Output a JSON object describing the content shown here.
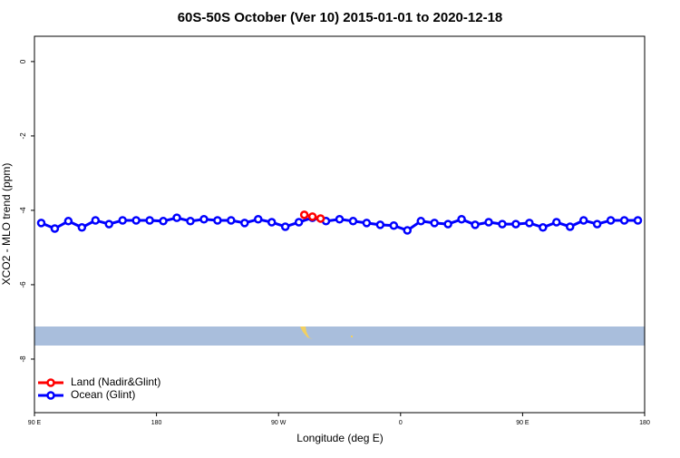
{
  "chart_data": {
    "type": "line",
    "title": "60S-50S October (Ver 10)   2015-01-01 to 2020-12-18",
    "x_label": "Longitude (deg E)",
    "y_label": "XCO2 - MLO trend (ppm)",
    "xlim": [
      90,
      540
    ],
    "ylim": [
      -9.44,
      0.68
    ],
    "xticks": [
      {
        "value": 90,
        "label": "90 E"
      },
      {
        "value": 180,
        "label": "180"
      },
      {
        "value": 270,
        "label": "90 W"
      },
      {
        "value": 360,
        "label": "0"
      },
      {
        "value": 450,
        "label": "90 E"
      },
      {
        "value": 540,
        "label": "180"
      }
    ],
    "yticks": [
      0,
      -2,
      -4,
      -6,
      -8
    ],
    "legend": "bottom-left",
    "series": [
      {
        "name": "Land (Nadir&Glint)",
        "color": "#ff0000",
        "x": [
          289,
          295,
          301
        ],
        "values": [
          -4.12,
          -4.17,
          -4.22
        ]
      },
      {
        "name": "Ocean (Glint)",
        "color": "#0000ff",
        "x": [
          95,
          105,
          115,
          125,
          135,
          145,
          155,
          165,
          175,
          185,
          195,
          205,
          215,
          225,
          235,
          245,
          255,
          265,
          275,
          285,
          295,
          305,
          315,
          325,
          335,
          345,
          355,
          365,
          375,
          385,
          395,
          405,
          415,
          425,
          435,
          445,
          455,
          465,
          475,
          485,
          495,
          505,
          515,
          525,
          535
        ],
        "values": [
          -4.34,
          -4.49,
          -4.29,
          -4.46,
          -4.27,
          -4.37,
          -4.27,
          -4.27,
          -4.27,
          -4.29,
          -4.2,
          -4.29,
          -4.24,
          -4.27,
          -4.27,
          -4.34,
          -4.24,
          -4.32,
          -4.44,
          -4.32,
          -4.2,
          -4.29,
          -4.24,
          -4.29,
          -4.34,
          -4.39,
          -4.41,
          -4.54,
          -4.29,
          -4.34,
          -4.37,
          -4.24,
          -4.39,
          -4.32,
          -4.37,
          -4.37,
          -4.34,
          -4.46,
          -4.32,
          -4.44,
          -4.27,
          -4.37,
          -4.27,
          -4.27,
          -4.27
        ]
      }
    ]
  }
}
